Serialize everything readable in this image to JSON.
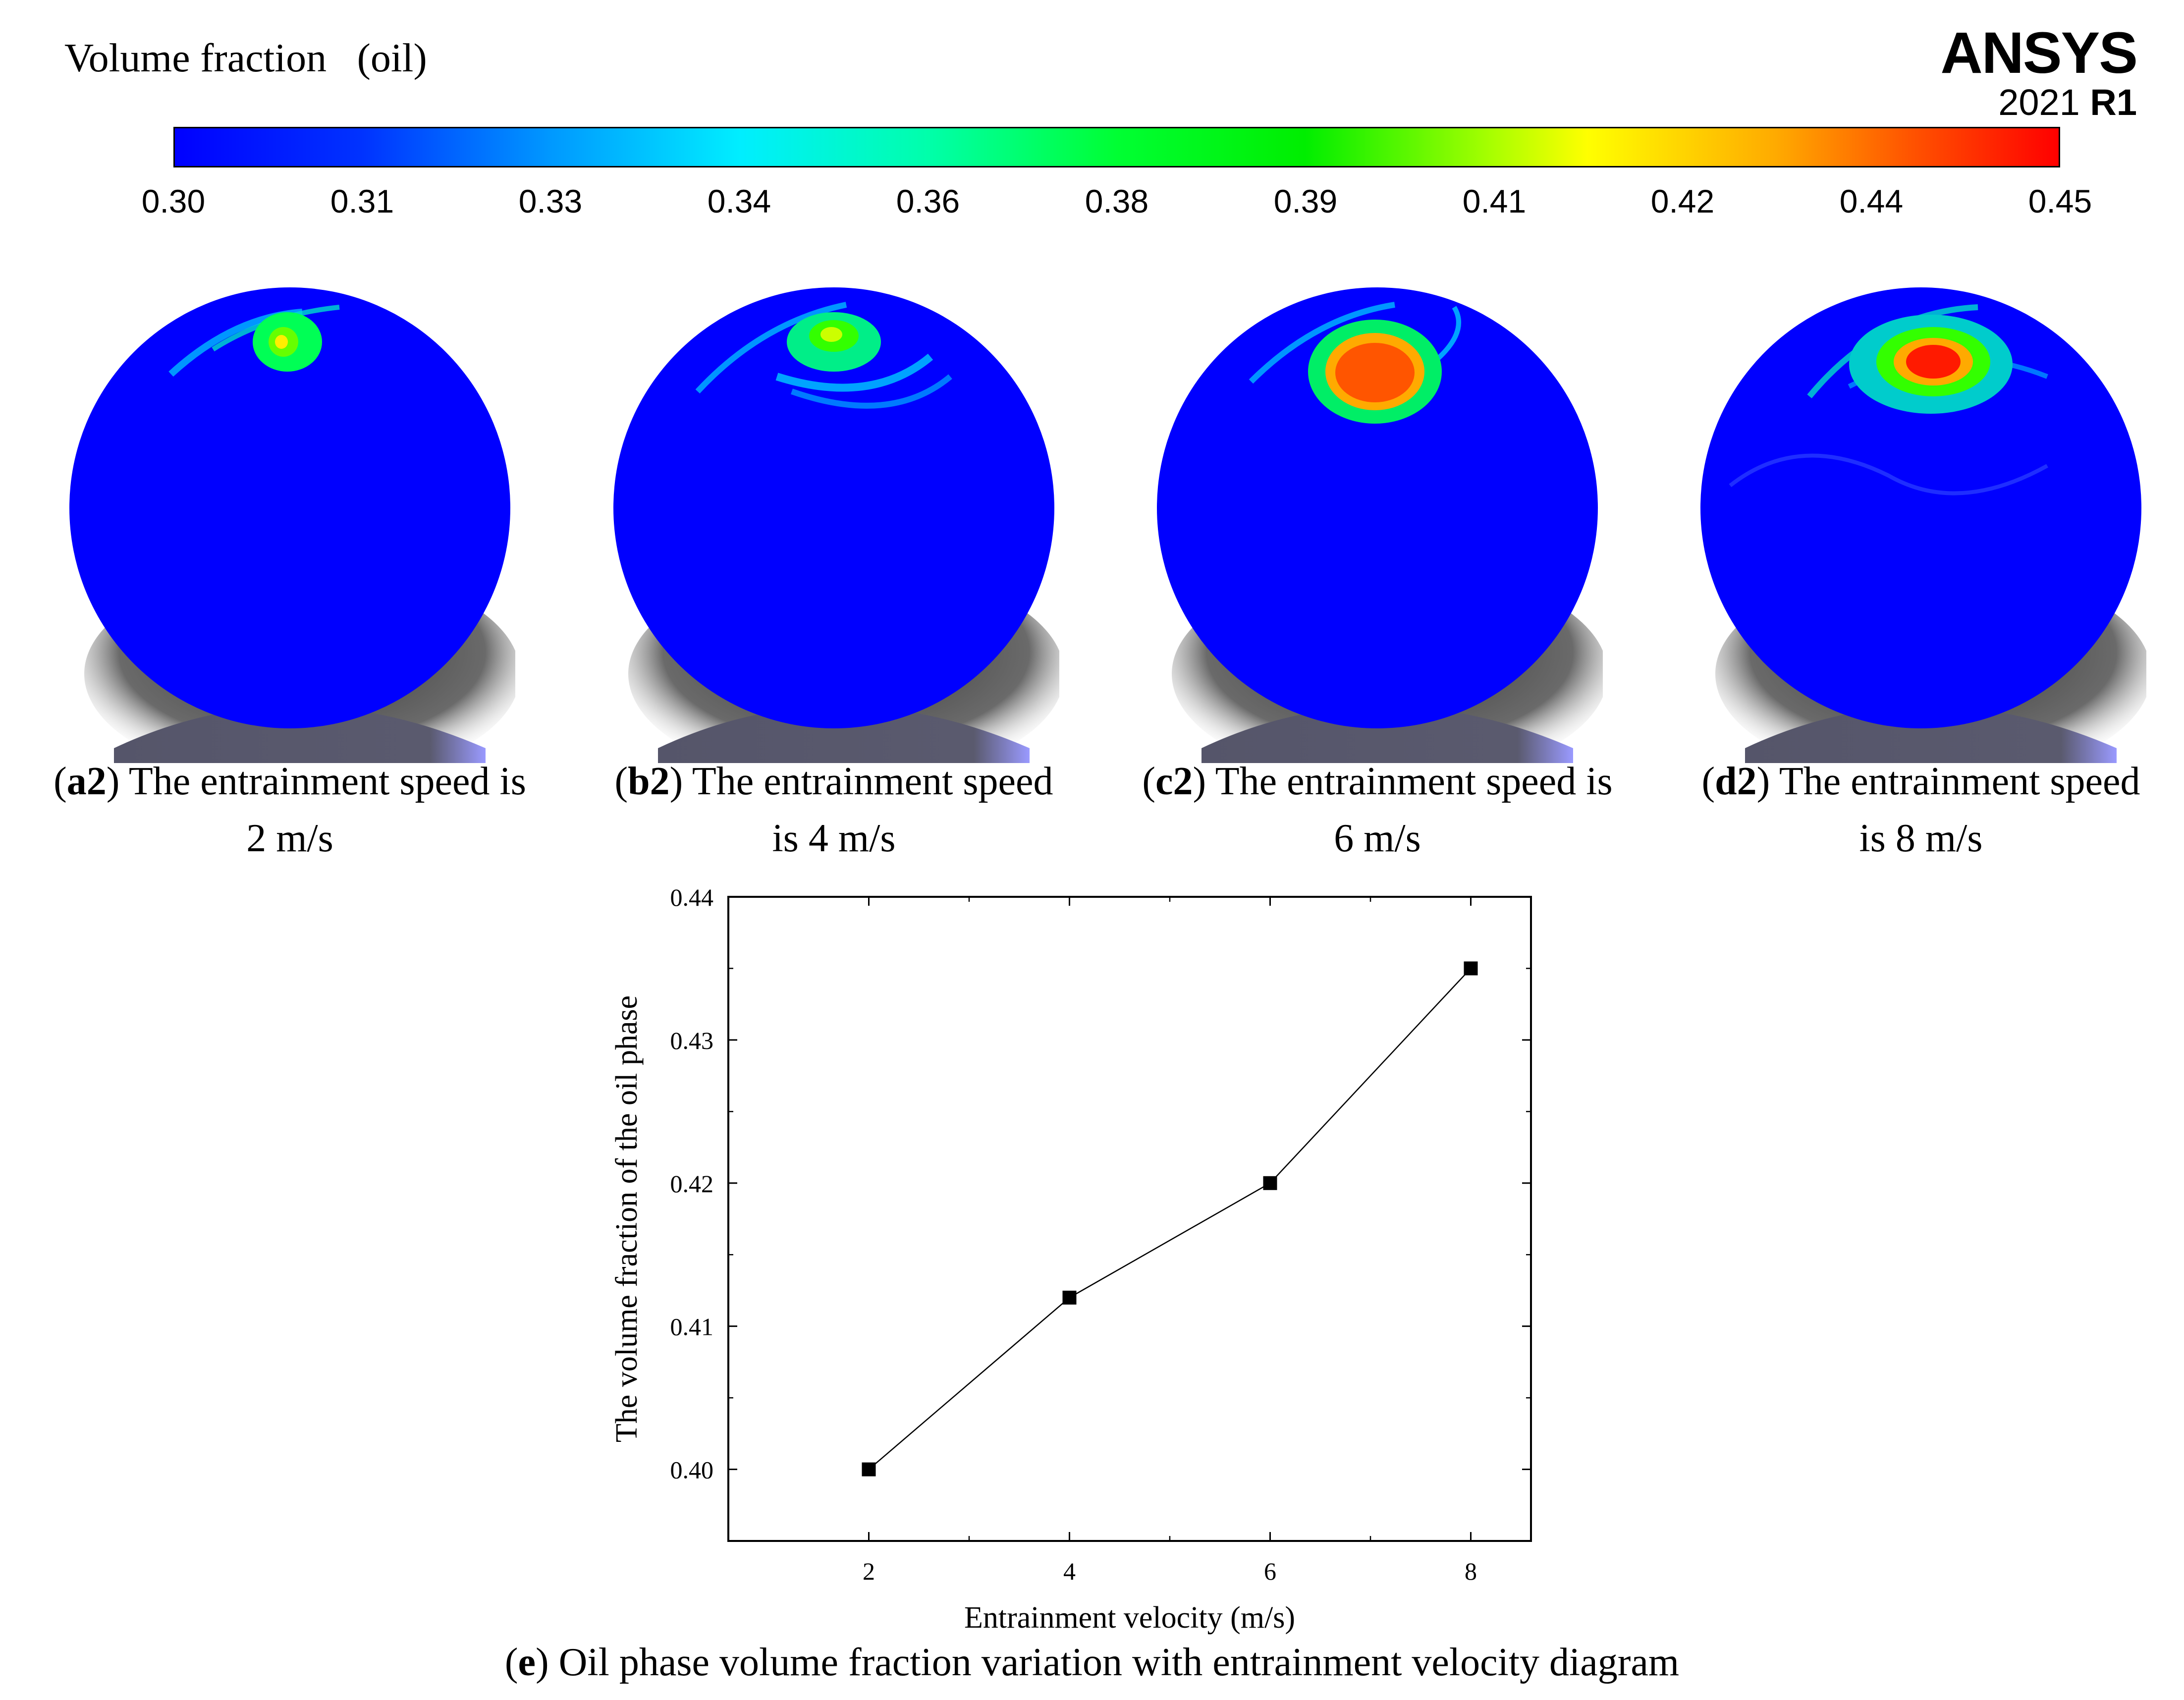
{
  "colorbar": {
    "title": "Volume fraction   (oil)",
    "ticks": [
      "0.30",
      "0.31",
      "0.33",
      "0.34",
      "0.36",
      "0.38",
      "0.39",
      "0.41",
      "0.42",
      "0.44",
      "0.45"
    ]
  },
  "logo": {
    "name": "ANSYS",
    "year": "2021",
    "release": "R1"
  },
  "panels": [
    {
      "label": "a2",
      "text": ") The entrainment speed is",
      "text2": "2 m/s",
      "core_color": "#ffee00"
    },
    {
      "label": "b2",
      "text": ") The entrainment speed",
      "text2": "is 4 m/s",
      "core_color": "#ccff00"
    },
    {
      "label": "c2",
      "text": ") The entrainment speed is",
      "text2": "6 m/s",
      "core_color": "#ff5500"
    },
    {
      "label": "d2",
      "text": ") The entrainment speed",
      "text2": "is 8 m/s",
      "core_color": "#ff1a00"
    }
  ],
  "chart_data": {
    "type": "line",
    "x": [
      2,
      4,
      6,
      8
    ],
    "values": [
      0.4,
      0.412,
      0.42,
      0.435
    ],
    "xlabel": "Entrainment velocity (m/s)",
    "ylabel": "The volume fraction of the oil phase",
    "xlim": [
      0.6,
      8.6
    ],
    "ylim": [
      0.395,
      0.44
    ],
    "xticks": [
      2,
      4,
      6,
      8
    ],
    "yticks": [
      0.4,
      0.41,
      0.42,
      0.43,
      0.44
    ],
    "ytick_labels": [
      "0.40",
      "0.41",
      "0.42",
      "0.43",
      "0.44"
    ],
    "marker": "square",
    "line_color": "#000000"
  },
  "caption": {
    "label": "e",
    "text": ") Oil phase volume fraction variation with entrainment velocity diagram"
  }
}
